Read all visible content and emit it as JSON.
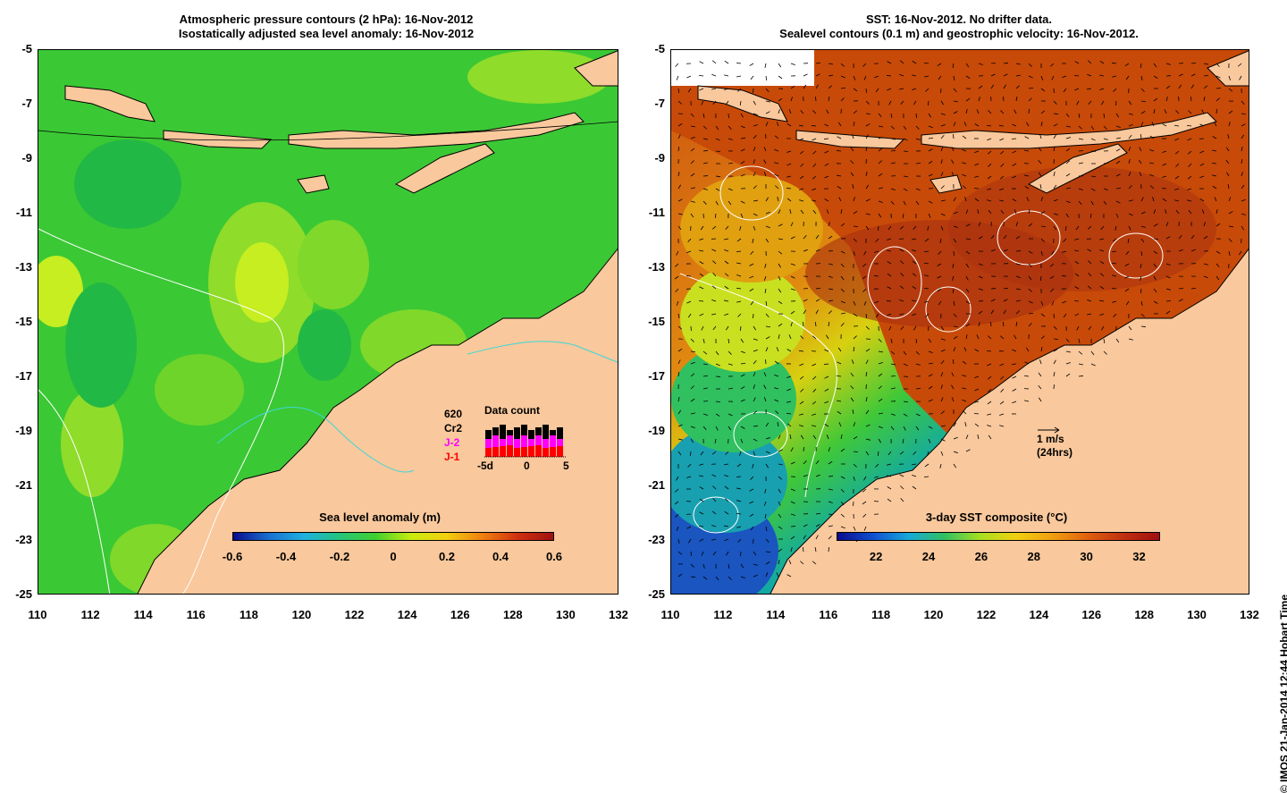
{
  "left_panel": {
    "title_line1": "Atmospheric pressure contours (2 hPa): 16-Nov-2012",
    "title_line2": "Isostatically adjusted sea level anomaly: 16-Nov-2012",
    "colorbar": {
      "label": "Sea level anomaly (m)",
      "ticks": [
        "-0.6",
        "-0.4",
        "-0.2",
        "0",
        "0.2",
        "0.4",
        "0.6"
      ]
    },
    "data_count": {
      "title": "Data count",
      "total": "620",
      "missions": [
        {
          "name": "Cr2",
          "color": "#000000"
        },
        {
          "name": "J-2",
          "color": "#ff00ff"
        },
        {
          "name": "J-1",
          "color": "#ff0000"
        }
      ],
      "axis_labels": [
        "-5d",
        "0",
        "5"
      ]
    }
  },
  "right_panel": {
    "title_line1": "SST: 16-Nov-2012. No drifter data.",
    "title_line2": "Sealevel contours (0.1 m) and geostrophic velocity: 16-Nov-2012.",
    "velocity_scale": {
      "speed": "1 m/s",
      "period": "(24hrs)"
    },
    "colorbar": {
      "label": "3-day SST composite (°C)",
      "ticks": [
        "22",
        "24",
        "26",
        "28",
        "30",
        "32"
      ]
    }
  },
  "axes": {
    "y_ticks": [
      "-5",
      "-7",
      "-9",
      "-11",
      "-13",
      "-15",
      "-17",
      "-19",
      "-21",
      "-23",
      "-25"
    ],
    "x_ticks": [
      "110",
      "112",
      "114",
      "116",
      "118",
      "120",
      "122",
      "124",
      "126",
      "128",
      "130",
      "132"
    ]
  },
  "credit": "© IMOS 21-Jan-2014 12:44 Hobart Time",
  "colors": {
    "land": "#f9c89c",
    "ocean_green": "#33cc33",
    "ssh_high": "#b0e000",
    "sst_warm": "#cc4400",
    "sst_cool": "#1a6fcf"
  }
}
